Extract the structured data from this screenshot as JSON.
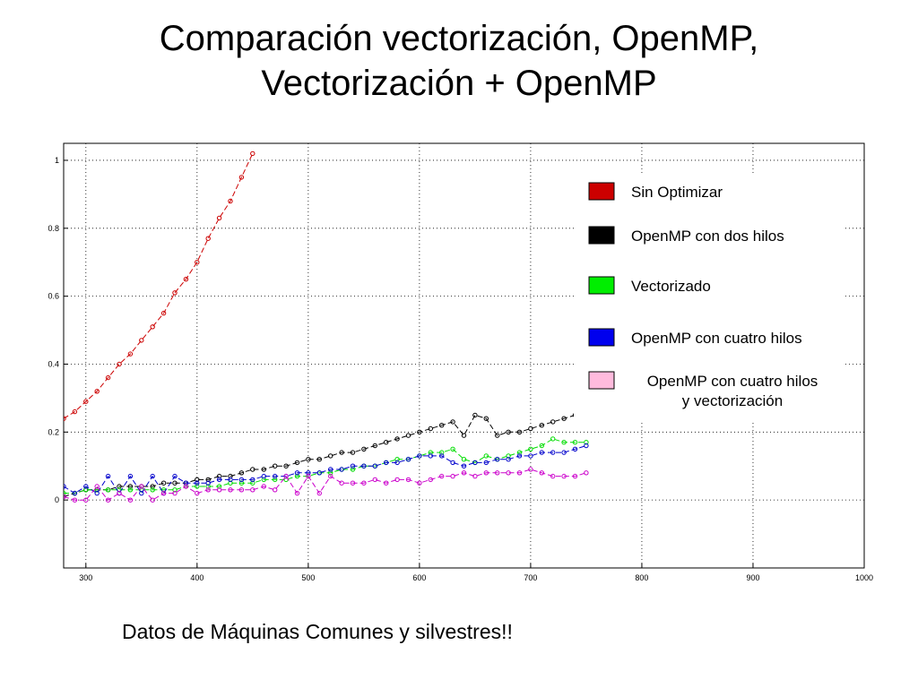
{
  "slide": {
    "title_line1": "Comparación vectorización, OpenMP,",
    "title_line2": "Vectorización + OpenMP",
    "caption": "Datos de Máquinas Comunes y silvestres!!"
  },
  "chart_data": {
    "type": "line",
    "title": "",
    "xlabel": "",
    "ylabel": "",
    "xlim": [
      280,
      1000
    ],
    "ylim": [
      -0.2,
      1.05
    ],
    "xticks": [
      "300",
      "400",
      "500",
      "600",
      "700",
      "800",
      "900",
      "1000"
    ],
    "yticks": [
      "0",
      "0.2",
      "0.4",
      "0.6",
      "0.8",
      "1"
    ],
    "grid": true,
    "legend": "right",
    "series": [
      {
        "name": "Sin Optimizar",
        "color": "#cc0000",
        "swatch": "#cc0000",
        "x": [
          280,
          290,
          300,
          310,
          320,
          330,
          340,
          350,
          360,
          370,
          380,
          390,
          400,
          410,
          420,
          430,
          440,
          450
        ],
        "y": [
          0.24,
          0.26,
          0.29,
          0.32,
          0.36,
          0.4,
          0.43,
          0.47,
          0.51,
          0.55,
          0.61,
          0.65,
          0.7,
          0.77,
          0.83,
          0.88,
          0.95,
          1.02
        ]
      },
      {
        "name": "OpenMP con dos hilos",
        "color": "#000000",
        "swatch": "#000000",
        "x": [
          280,
          290,
          300,
          310,
          320,
          330,
          340,
          350,
          360,
          370,
          380,
          390,
          400,
          410,
          420,
          430,
          440,
          450,
          460,
          470,
          480,
          490,
          500,
          510,
          520,
          530,
          540,
          550,
          560,
          570,
          580,
          590,
          600,
          610,
          620,
          630,
          640,
          650,
          660,
          670,
          680,
          690,
          700,
          710,
          720,
          730,
          740,
          750
        ],
        "y": [
          0.01,
          0.02,
          0.03,
          0.03,
          0.03,
          0.04,
          0.04,
          0.04,
          0.04,
          0.05,
          0.05,
          0.05,
          0.06,
          0.06,
          0.07,
          0.07,
          0.08,
          0.09,
          0.09,
          0.1,
          0.1,
          0.11,
          0.12,
          0.12,
          0.13,
          0.14,
          0.14,
          0.15,
          0.16,
          0.17,
          0.18,
          0.19,
          0.2,
          0.21,
          0.22,
          0.23,
          0.19,
          0.25,
          0.24,
          0.19,
          0.2,
          0.2,
          0.21,
          0.22,
          0.23,
          0.24,
          0.25,
          0.26
        ]
      },
      {
        "name": "Vectorizado",
        "color": "#00dd00",
        "swatch": "#00ee00",
        "x": [
          280,
          290,
          300,
          310,
          320,
          330,
          340,
          350,
          360,
          370,
          380,
          390,
          400,
          410,
          420,
          430,
          440,
          450,
          460,
          470,
          480,
          490,
          500,
          510,
          520,
          530,
          540,
          550,
          560,
          570,
          580,
          590,
          600,
          610,
          620,
          630,
          640,
          650,
          660,
          670,
          680,
          690,
          700,
          710,
          720,
          730,
          740,
          750
        ],
        "y": [
          0.02,
          0.02,
          0.03,
          0.03,
          0.03,
          0.03,
          0.03,
          0.03,
          0.03,
          0.03,
          0.03,
          0.04,
          0.04,
          0.04,
          0.04,
          0.05,
          0.05,
          0.05,
          0.06,
          0.06,
          0.06,
          0.07,
          0.07,
          0.08,
          0.08,
          0.09,
          0.09,
          0.1,
          0.1,
          0.11,
          0.12,
          0.12,
          0.13,
          0.14,
          0.14,
          0.15,
          0.12,
          0.11,
          0.13,
          0.12,
          0.13,
          0.14,
          0.15,
          0.16,
          0.18,
          0.17,
          0.17,
          0.17
        ]
      },
      {
        "name": "OpenMP con cuatro hilos",
        "color": "#0000cc",
        "swatch": "#0000ee",
        "x": [
          280,
          290,
          300,
          310,
          320,
          330,
          340,
          350,
          360,
          370,
          380,
          390,
          400,
          410,
          420,
          430,
          440,
          450,
          460,
          470,
          480,
          490,
          500,
          510,
          520,
          530,
          540,
          550,
          560,
          570,
          580,
          590,
          600,
          610,
          620,
          630,
          640,
          650,
          660,
          670,
          680,
          690,
          700,
          710,
          720,
          730,
          740,
          750
        ],
        "y": [
          0.04,
          0.02,
          0.04,
          0.02,
          0.07,
          0.02,
          0.07,
          0.02,
          0.07,
          0.02,
          0.07,
          0.05,
          0.05,
          0.05,
          0.06,
          0.06,
          0.06,
          0.06,
          0.07,
          0.07,
          0.07,
          0.08,
          0.08,
          0.08,
          0.09,
          0.09,
          0.1,
          0.1,
          0.1,
          0.11,
          0.11,
          0.12,
          0.13,
          0.13,
          0.13,
          0.11,
          0.1,
          0.11,
          0.11,
          0.12,
          0.12,
          0.13,
          0.13,
          0.14,
          0.14,
          0.14,
          0.15,
          0.16
        ]
      },
      {
        "name": "OpenMP con cuatro hilos\ny vectorización",
        "color": "#cc00cc",
        "swatch": "#ffbbdd",
        "x": [
          280,
          290,
          300,
          310,
          320,
          330,
          340,
          350,
          360,
          370,
          380,
          390,
          400,
          410,
          420,
          430,
          440,
          450,
          460,
          470,
          480,
          490,
          500,
          510,
          520,
          530,
          540,
          550,
          560,
          570,
          580,
          590,
          600,
          610,
          620,
          630,
          640,
          650,
          660,
          670,
          680,
          690,
          700,
          710,
          720,
          730,
          740,
          750
        ],
        "y": [
          0.01,
          0.0,
          0.0,
          0.04,
          0.0,
          0.02,
          0.0,
          0.04,
          0.0,
          0.02,
          0.02,
          0.04,
          0.02,
          0.03,
          0.03,
          0.03,
          0.03,
          0.03,
          0.04,
          0.03,
          0.07,
          0.02,
          0.07,
          0.02,
          0.07,
          0.05,
          0.05,
          0.05,
          0.06,
          0.05,
          0.06,
          0.06,
          0.05,
          0.06,
          0.07,
          0.07,
          0.08,
          0.07,
          0.08,
          0.08,
          0.08,
          0.08,
          0.09,
          0.08,
          0.07,
          0.07,
          0.07,
          0.08
        ]
      }
    ]
  }
}
